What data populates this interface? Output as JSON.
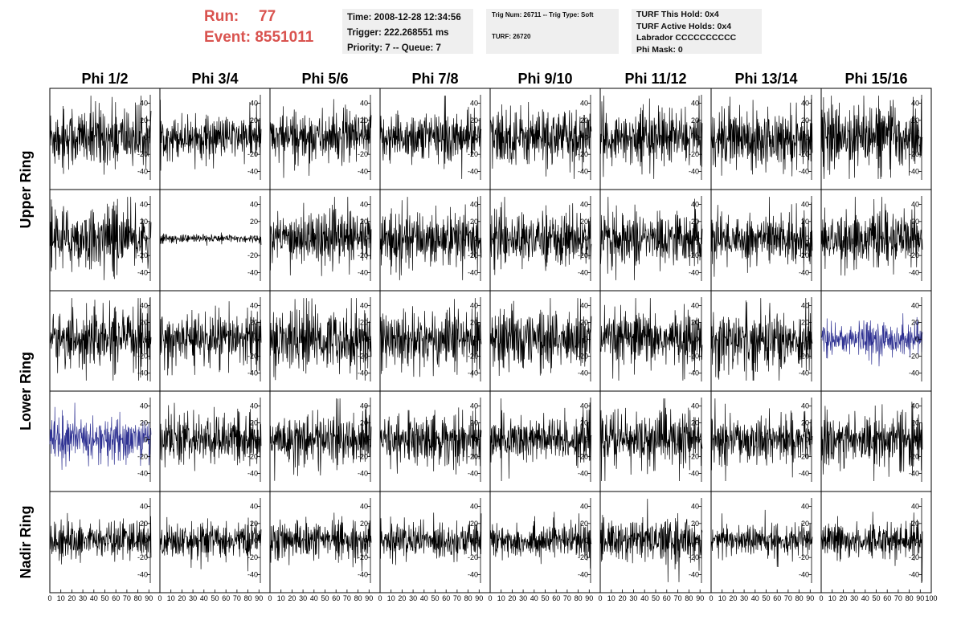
{
  "header": {
    "run_label": "Run:",
    "run_value": "77",
    "event_label": "Event:",
    "event_value": "8551011"
  },
  "time_box": {
    "time": "Time: 2008-12-28 12:34:56",
    "trigger": "Trigger: 222.268551 ms",
    "priority": "Priority: 7 -- Queue: 7"
  },
  "trig_box": {
    "trig": "Trig Num: 26711 -- Trig Type: Soft",
    "turf": "TURF: 26720"
  },
  "turf_box": {
    "this_hold": "TURF This Hold: 0x4",
    "active_holds": "TURF Active Holds: 0x4",
    "labrador": "Labrador CCCCCCCCCC",
    "phi_mask": "Phi Mask: 0"
  },
  "colors": {
    "trace": "#000000",
    "highlight": "#2e3192",
    "run_text": "#d9534f",
    "info_bg": "#efefef"
  },
  "chart_data": {
    "type": "line",
    "description_kind": "waveform grid",
    "columns": [
      "Phi 1/2",
      "Phi 3/4",
      "Phi 5/6",
      "Phi 7/8",
      "Phi 9/10",
      "Phi 11/12",
      "Phi 13/14",
      "Phi 15/16"
    ],
    "row_labels": [
      "Upper Ring",
      "Lower Ring",
      "Nadir Ring"
    ],
    "xlim": [
      0,
      100
    ],
    "ylim": [
      -50,
      50
    ],
    "x_ticks": [
      "0",
      "10",
      "20",
      "30",
      "40",
      "50",
      "60",
      "70",
      "80",
      "90",
      "100"
    ],
    "y_ticks": [
      "40",
      "20",
      "0",
      "-20",
      "-40"
    ],
    "n_samples": 260,
    "amplitudes": [
      [
        22,
        14,
        18,
        18,
        20,
        18,
        20,
        22
      ],
      [
        22,
        3,
        18,
        19,
        18,
        18,
        18,
        18
      ],
      [
        20,
        19,
        22,
        21,
        21,
        19,
        22,
        12
      ],
      [
        16,
        17,
        18,
        18,
        18,
        20,
        16,
        19
      ],
      [
        13,
        12,
        13,
        13,
        12,
        14,
        11,
        12
      ]
    ],
    "highlighted": [
      [
        2,
        7
      ],
      [
        3,
        0
      ]
    ]
  }
}
